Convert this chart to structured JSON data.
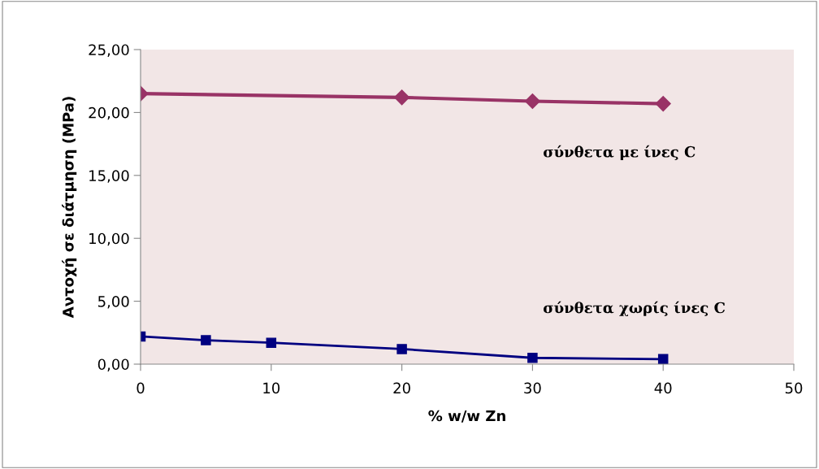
{
  "chart_data": {
    "type": "line",
    "xlabel": "% w/w Zn",
    "ylabel": "Αντοχή σε διάτμηση (MPa)",
    "xlim": [
      0,
      50
    ],
    "xticks": [
      0,
      10,
      20,
      30,
      40,
      50
    ],
    "ylim": [
      0,
      25
    ],
    "yticks": [
      {
        "value": 0,
        "label": "0,00"
      },
      {
        "value": 5,
        "label": "5,00"
      },
      {
        "value": 10,
        "label": "10,00"
      },
      {
        "value": 15,
        "label": "15,00"
      },
      {
        "value": 20,
        "label": "20,00"
      },
      {
        "value": 25,
        "label": "25,00"
      }
    ],
    "grid": false,
    "legend": false,
    "series": [
      {
        "color": "#993366",
        "marker": "diamond",
        "x": [
          0,
          20,
          30,
          40
        ],
        "values": [
          21.5,
          21.2,
          20.9,
          20.7
        ]
      },
      {
        "color": "#000080",
        "marker": "square",
        "x": [
          0,
          5,
          10,
          20,
          30,
          40
        ],
        "values": [
          2.2,
          1.9,
          1.7,
          1.2,
          0.5,
          0.4
        ]
      }
    ],
    "annotations": [
      "σύνθετα με ίνες C",
      "σύνθετα χωρίς ίνες C"
    ]
  }
}
